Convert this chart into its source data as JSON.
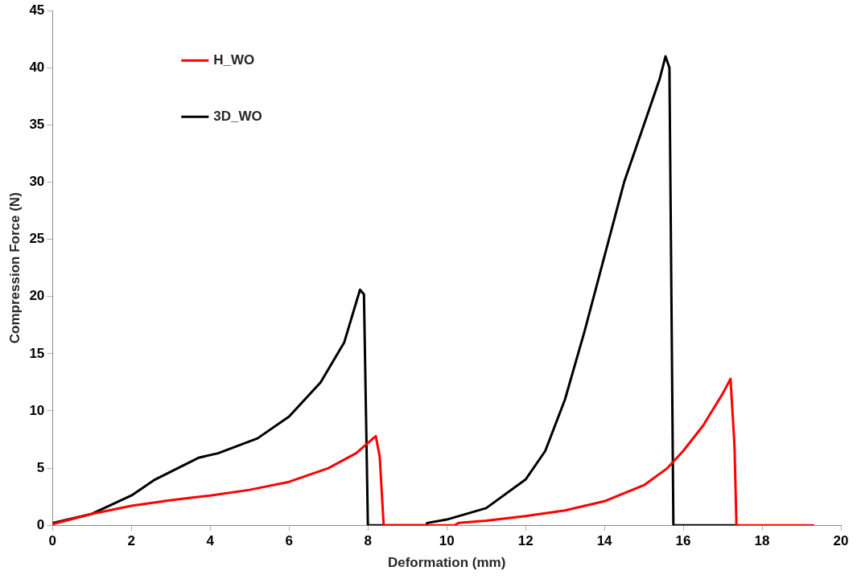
{
  "chart_data": {
    "type": "line",
    "xlabel": "Deformation (mm)",
    "ylabel": "Compression Force (N)",
    "xlim": [
      0,
      20
    ],
    "xticks": [
      0,
      2,
      4,
      6,
      8,
      10,
      12,
      14,
      16,
      18,
      20
    ],
    "ylim": [
      0,
      45
    ],
    "yticks": [
      0,
      5,
      10,
      15,
      20,
      25,
      30,
      35,
      40,
      45
    ],
    "grid": false,
    "legend": "top left",
    "marker": "none",
    "line_style": "solid",
    "series": [
      {
        "name": "H_WO",
        "color": "#ff0000",
        "x": [
          0,
          1,
          2,
          3,
          4,
          5,
          6,
          7,
          7.7,
          8.2,
          8.3,
          8.4,
          10.2,
          10.3,
          11,
          12,
          13,
          14,
          15,
          15.6,
          16,
          16.5,
          17,
          17.2,
          17.3,
          17.35,
          19.3
        ],
        "values": [
          0.1,
          1.0,
          1.7,
          2.2,
          2.6,
          3.1,
          3.8,
          5.0,
          6.3,
          7.8,
          6,
          0,
          0,
          0.2,
          0.4,
          0.8,
          1.3,
          2.1,
          3.5,
          5,
          6.5,
          8.7,
          11.5,
          12.8,
          7,
          0,
          0
        ]
      },
      {
        "name": "3D_WO",
        "color": "#000000",
        "x": [
          0,
          1,
          2,
          2.6,
          3.7,
          4.2,
          5.2,
          6,
          6.8,
          7.4,
          7.8,
          7.9,
          8.0,
          9.5,
          9.5,
          10,
          11,
          12,
          12.5,
          13,
          13.5,
          14,
          14.5,
          15,
          15.4,
          15.55,
          15.65,
          15.7,
          15.75,
          17.4
        ],
        "values": [
          0.2,
          1.0,
          2.6,
          4.0,
          5.9,
          6.3,
          7.6,
          9.5,
          12.5,
          16,
          20.6,
          20.2,
          0,
          0,
          0.2,
          0.5,
          1.5,
          4,
          6.5,
          11,
          17,
          23.5,
          30,
          35,
          39,
          41,
          40,
          20,
          0,
          0
        ]
      }
    ]
  }
}
